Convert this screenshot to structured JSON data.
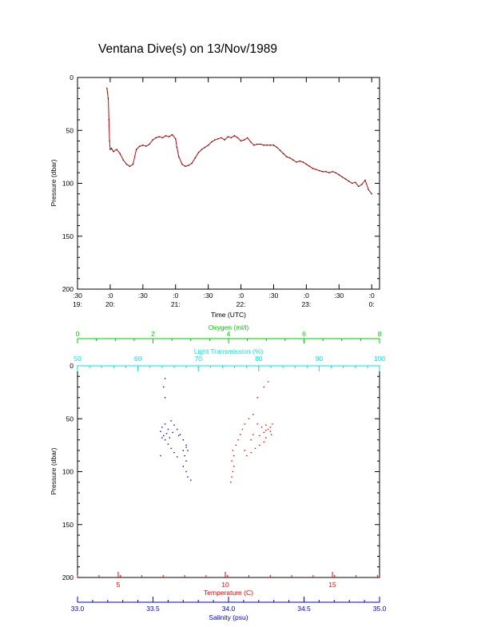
{
  "page_title": "Ventana Dive(s) on 13/Nov/1989",
  "colors": {
    "axis": "#000000",
    "pressure_trace": "#cc0000",
    "oxygen": "#00cc00",
    "light_transmission": "#00e5e5",
    "temperature": "#ee0000",
    "salinity": "#0000cc"
  },
  "chart_data": [
    {
      "type": "line",
      "title": "Ventana Dive(s) on 13/Nov/1989",
      "xlabel": "Time (UTC)",
      "ylabel": "Pressure (dbar)",
      "x_ticks": [
        {
          "t": 19.5,
          "top": ":30",
          "bottom": "19:"
        },
        {
          "t": 20.0,
          "top": ":0",
          "bottom": "20:"
        },
        {
          "t": 20.5,
          "top": ":30",
          "bottom": ""
        },
        {
          "t": 21.0,
          "top": ":0",
          "bottom": "21:"
        },
        {
          "t": 21.5,
          "top": ":30",
          "bottom": ""
        },
        {
          "t": 22.0,
          "top": ":0",
          "bottom": "22:"
        },
        {
          "t": 22.5,
          "top": ":30",
          "bottom": ""
        },
        {
          "t": 23.0,
          "top": ":0",
          "bottom": "23:"
        },
        {
          "t": 23.5,
          "top": ":30",
          "bottom": ""
        },
        {
          "t": 24.0,
          "top": ":0",
          "bottom": "0:"
        }
      ],
      "x_range": [
        19.5,
        24.12
      ],
      "ylim": [
        0,
        200
      ],
      "y_inverted": true,
      "y_ticks": [
        "0",
        "50",
        "100",
        "150",
        "200"
      ],
      "series": [
        {
          "x": [
            19.95,
            19.97,
            19.98,
            19.99,
            20.0,
            20.02,
            20.05,
            20.1,
            20.15,
            20.2,
            20.25,
            20.3,
            20.35,
            20.4,
            20.45,
            20.5,
            20.55,
            20.6,
            20.65,
            20.7,
            20.75,
            20.8,
            20.85,
            20.9,
            20.95,
            21.0,
            21.02,
            21.05,
            21.1,
            21.15,
            21.2,
            21.25,
            21.3,
            21.35,
            21.4,
            21.45,
            21.5,
            21.55,
            21.6,
            21.65,
            21.7,
            21.75,
            21.8,
            21.85,
            21.9,
            21.95,
            22.0,
            22.05,
            22.1,
            22.15,
            22.2,
            22.25,
            22.3,
            22.35,
            22.4,
            22.45,
            22.5,
            22.55,
            22.6,
            22.65,
            22.7,
            22.75,
            22.8,
            22.85,
            22.9,
            22.95,
            23.0,
            23.05,
            23.1,
            23.15,
            23.2,
            23.25,
            23.3,
            23.35,
            23.4,
            23.45,
            23.5,
            23.55,
            23.6,
            23.65,
            23.7,
            23.75,
            23.8,
            23.85,
            23.9,
            23.95,
            24.0
          ],
          "y": [
            10,
            20,
            40,
            60,
            68,
            67,
            70,
            68,
            72,
            78,
            82,
            84,
            82,
            68,
            65,
            64,
            65,
            63,
            59,
            57,
            56,
            57,
            55,
            56,
            54,
            58,
            66,
            75,
            82,
            84,
            83,
            81,
            76,
            71,
            68,
            66,
            64,
            61,
            59,
            58,
            57,
            59,
            56,
            57,
            55,
            57,
            60,
            59,
            57,
            61,
            64,
            63,
            63,
            64,
            64,
            64,
            64,
            66,
            69,
            72,
            75,
            76,
            78,
            80,
            79,
            80,
            82,
            84,
            86,
            87,
            88,
            89,
            89,
            90,
            89,
            90,
            92,
            94,
            96,
            98,
            100,
            99,
            103,
            101,
            97,
            106,
            110
          ]
        }
      ]
    },
    {
      "type": "scatter",
      "ylabel": "Pressure (dbar)",
      "ylim": [
        0,
        200
      ],
      "y_inverted": true,
      "y_ticks": [
        "0",
        "50",
        "100",
        "150",
        "200"
      ],
      "axes": {
        "oxygen": {
          "label": "Oxygen (ml/l)",
          "range": [
            0,
            8
          ],
          "ticks": [
            "0",
            "2",
            "4",
            "6",
            "8"
          ]
        },
        "light_transmission": {
          "label": "Light Transmission (%)",
          "range": [
            50,
            100
          ],
          "ticks": [
            "50",
            "60",
            "70",
            "80",
            "90",
            "100"
          ]
        },
        "temperature": {
          "label": "Temperature (C)",
          "range": [
            3.1,
            17.2
          ],
          "ticks": [
            "5",
            "10",
            "15"
          ]
        },
        "salinity": {
          "label": "Salinity (psu)",
          "range": [
            33.0,
            35.0
          ],
          "ticks": [
            "33.0",
            "33.5",
            "34.0",
            "34.5",
            "35.0"
          ]
        }
      },
      "series": [
        {
          "variable": "temperature",
          "points": [
            [
              10.25,
              110
            ],
            [
              10.3,
              105
            ],
            [
              10.35,
              100
            ],
            [
              10.4,
              95
            ],
            [
              10.3,
              90
            ],
            [
              10.4,
              85
            ],
            [
              10.35,
              80
            ],
            [
              10.5,
              75
            ],
            [
              10.6,
              70
            ],
            [
              10.7,
              65
            ],
            [
              10.8,
              60
            ],
            [
              10.9,
              55
            ],
            [
              11.1,
              50
            ],
            [
              11.3,
              46
            ],
            [
              11.5,
              55
            ],
            [
              11.7,
              58
            ],
            [
              11.9,
              56
            ],
            [
              12.0,
              60
            ],
            [
              12.1,
              62
            ],
            [
              12.15,
              65
            ],
            [
              11.9,
              68
            ],
            [
              11.8,
              72
            ],
            [
              11.6,
              75
            ],
            [
              11.4,
              78
            ],
            [
              11.2,
              82
            ],
            [
              11.0,
              85
            ],
            [
              10.9,
              80
            ],
            [
              11.3,
              65
            ],
            [
              11.6,
              66
            ],
            [
              11.8,
              63
            ],
            [
              11.9,
              61
            ],
            [
              11.2,
              70
            ],
            [
              12.1,
              58
            ],
            [
              12.2,
              55
            ],
            [
              11.8,
              20
            ],
            [
              12.0,
              15
            ],
            [
              11.5,
              30
            ]
          ]
        },
        {
          "variable": "salinity",
          "points": [
            [
              33.75,
              108
            ],
            [
              33.73,
              105
            ],
            [
              33.72,
              100
            ],
            [
              33.7,
              95
            ],
            [
              33.72,
              90
            ],
            [
              33.71,
              85
            ],
            [
              33.73,
              80
            ],
            [
              33.72,
              75
            ],
            [
              33.7,
              70
            ],
            [
              33.68,
              65
            ],
            [
              33.66,
              60
            ],
            [
              33.64,
              56
            ],
            [
              33.62,
              52
            ],
            [
              33.58,
              55
            ],
            [
              33.56,
              58
            ],
            [
              33.55,
              62
            ],
            [
              33.57,
              66
            ],
            [
              33.58,
              70
            ],
            [
              33.6,
              74
            ],
            [
              33.62,
              78
            ],
            [
              33.64,
              82
            ],
            [
              33.66,
              86
            ],
            [
              33.7,
              80
            ],
            [
              33.72,
              77
            ],
            [
              33.6,
              60
            ],
            [
              33.59,
              64
            ],
            [
              33.61,
              68
            ],
            [
              33.63,
              63
            ],
            [
              33.67,
              66
            ],
            [
              33.56,
              68
            ],
            [
              33.58,
              12
            ],
            [
              33.57,
              20
            ],
            [
              33.58,
              30
            ],
            [
              33.55,
              85
            ]
          ]
        }
      ]
    }
  ]
}
